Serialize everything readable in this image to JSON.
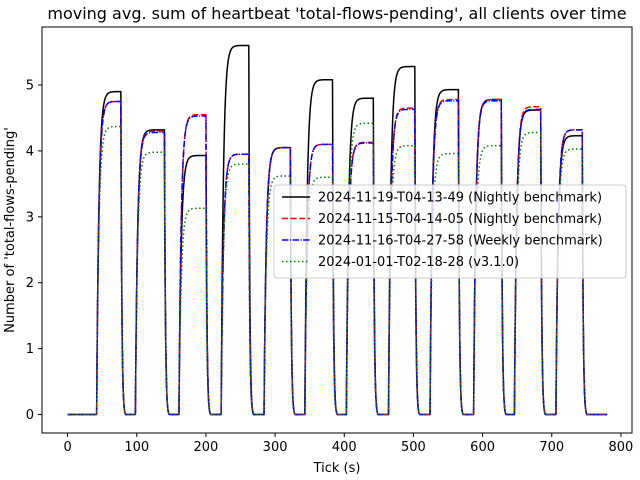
{
  "chart_data": {
    "type": "line",
    "title": "moving avg. sum of heartbeat 'total-flows-pending', all clients over time",
    "xlabel": "Tick (s)",
    "ylabel": "Number of 'total-flows-pending'",
    "xlim": [
      -37,
      816
    ],
    "ylim": [
      -0.28,
      5.88
    ],
    "xticks": [
      0,
      100,
      200,
      300,
      400,
      500,
      600,
      700,
      800
    ],
    "yticks": [
      0,
      1,
      2,
      3,
      4,
      5
    ],
    "grid": false,
    "legend_position": "center-right",
    "segments_x": [
      [
        42,
        77
      ],
      [
        98,
        140
      ],
      [
        161,
        200
      ],
      [
        222,
        262
      ],
      [
        284,
        322
      ],
      [
        343,
        383
      ],
      [
        403,
        442
      ],
      [
        464,
        502
      ],
      [
        524,
        565
      ],
      [
        587,
        627
      ],
      [
        646,
        684
      ],
      [
        706,
        744
      ]
    ],
    "x_range": [
      0,
      780
    ],
    "series": [
      {
        "name": "2024-11-19-T04-13-49 (Nightly benchmark)",
        "color": "#000000",
        "dash": "solid",
        "plateaus": [
          4.9,
          4.32,
          3.93,
          5.6,
          4.05,
          5.08,
          4.8,
          5.28,
          4.93,
          4.78,
          4.62,
          4.23
        ]
      },
      {
        "name": "2024-11-15-T04-14-05 (Nightly benchmark)",
        "color": "#ff0000",
        "dash": "dashed",
        "plateaus": [
          4.75,
          4.3,
          4.55,
          3.95,
          4.05,
          4.1,
          4.13,
          4.65,
          4.78,
          4.78,
          4.67,
          4.32
        ]
      },
      {
        "name": "2024-11-16-T04-27-58 (Weekly benchmark)",
        "color": "#0000ff",
        "dash": "dashdot",
        "plateaus": [
          4.75,
          4.28,
          4.53,
          3.95,
          4.05,
          4.1,
          4.12,
          4.63,
          4.76,
          4.76,
          4.63,
          4.32
        ]
      },
      {
        "name": "2024-01-01-T02-18-28 (v3.1.0)",
        "color": "#008000",
        "dash": "dotted",
        "plateaus": [
          4.37,
          3.98,
          3.13,
          3.8,
          3.62,
          3.6,
          4.42,
          4.08,
          3.96,
          4.08,
          4.28,
          4.03
        ]
      }
    ]
  }
}
